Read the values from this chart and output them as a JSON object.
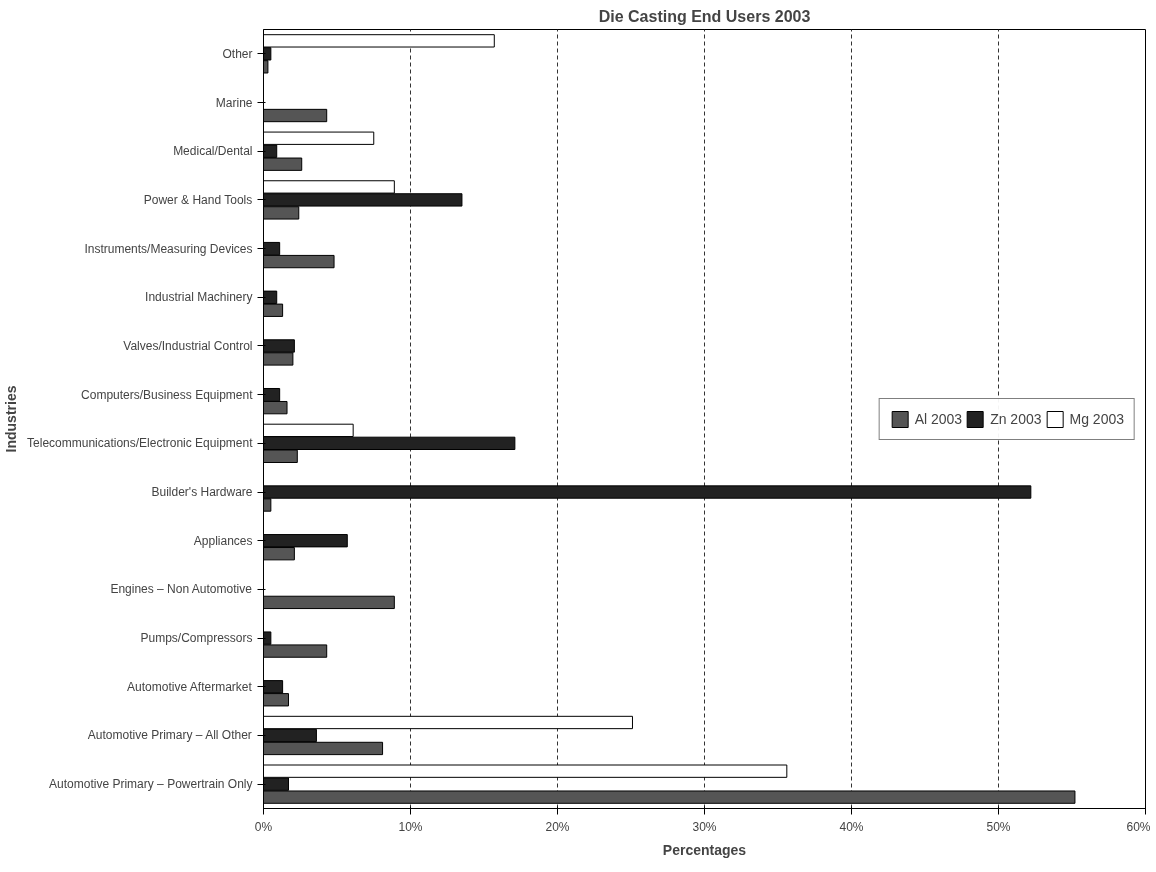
{
  "chart_data": {
    "type": "bar",
    "orientation": "horizontal",
    "title": "Die Casting End Users 2003",
    "xlabel": "Percentages",
    "ylabel": "Industries",
    "categories": [
      "Other",
      "Marine",
      "Medical/Dental",
      "Power & Hand Tools",
      "Instruments/Measuring Devices",
      "Industrial Machinery",
      "Valves/Industrial Control",
      "Computers/Business Equipment",
      "Telecommunications/Electronic Equipment",
      "Builder's Hardware",
      "Appliances",
      "Engines – Non Automotive",
      "Pumps/Compressors",
      "Automotive Aftermarket",
      "Automotive Primary – All Other",
      "Automotive Primary – Powertrain Only"
    ],
    "series": [
      {
        "name": "Al 2003",
        "color": "#555555",
        "values": [
          0.3,
          4.3,
          2.6,
          2.4,
          4.8,
          1.3,
          2.0,
          1.6,
          2.3,
          0.5,
          2.1,
          8.9,
          4.3,
          1.7,
          8.1,
          55.2
        ]
      },
      {
        "name": "Zn 2003",
        "color": "#222222",
        "values": [
          0.5,
          null,
          0.9,
          13.5,
          1.1,
          0.9,
          2.1,
          1.1,
          17.1,
          52.2,
          5.7,
          null,
          0.5,
          1.3,
          3.6,
          1.7
        ]
      },
      {
        "name": "Mg 2003",
        "color": "#ffffff",
        "values": [
          15.7,
          null,
          7.5,
          8.9,
          null,
          null,
          null,
          null,
          6.1,
          null,
          null,
          null,
          null,
          null,
          25.1,
          35.6
        ]
      }
    ],
    "xlim": [
      0,
      60
    ],
    "xticks": [
      {
        "value": 0,
        "label": "0%"
      },
      {
        "value": 10,
        "label": "10%"
      },
      {
        "value": 20,
        "label": "20%"
      },
      {
        "value": 30,
        "label": "30%"
      },
      {
        "value": 40,
        "label": "40%"
      },
      {
        "value": 50,
        "label": "50%"
      },
      {
        "value": 60,
        "label": "60%"
      }
    ],
    "grid": "x",
    "legend": "right"
  }
}
